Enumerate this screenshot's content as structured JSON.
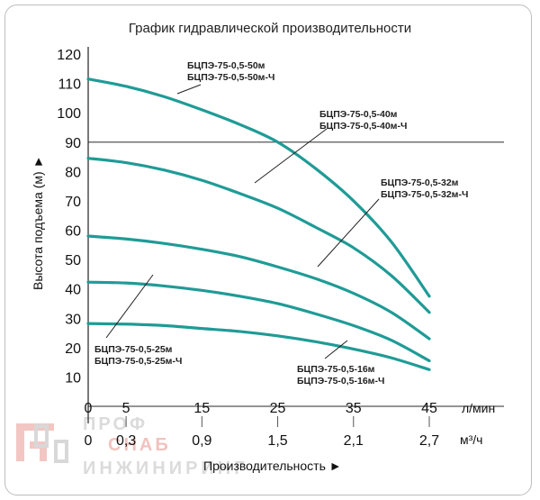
{
  "chart_data": {
    "type": "line",
    "title": "График гидравлической производительности",
    "ylabel": "Высота подъема (м) ►",
    "xlabel": "Производительность ►",
    "x_unit_lpm": "л/мин",
    "x_unit_m3h": "м³/ч",
    "ylim": [
      0,
      120
    ],
    "yticks": [
      "120",
      "110",
      "100",
      "90",
      "80",
      "70",
      "60",
      "50",
      "40",
      "30",
      "20",
      "10"
    ],
    "xlim": [
      0,
      45
    ],
    "xticks_lpm": [
      "0",
      "5",
      "15",
      "25",
      "35",
      "45"
    ],
    "xticks_m3h": [
      "0",
      "0,3",
      "0,9",
      "1,5",
      "2,1",
      "2,7"
    ],
    "grid_major_y": [
      90,
      0
    ],
    "series": [
      {
        "name": "БЦПЭ-75-0,5-50м / БЦПЭ-75-0,5-50м-Ч",
        "x": [
          0,
          5,
          10,
          15,
          20,
          25,
          30,
          35,
          40,
          45
        ],
        "y": [
          111.5,
          109,
          105.5,
          101,
          96,
          90,
          81,
          70,
          56,
          37.5
        ]
      },
      {
        "name": "БЦПЭ-75-0,5-40м / БЦПЭ-75-0,5-40м-Ч",
        "x": [
          0,
          5,
          10,
          15,
          20,
          25,
          30,
          35,
          40,
          45
        ],
        "y": [
          84.5,
          83,
          80.5,
          77,
          72.5,
          67.5,
          61,
          54,
          44.5,
          32
        ]
      },
      {
        "name": "БЦПЭ-75-0,5-32м / БЦПЭ-75-0,5-32м-Ч",
        "x": [
          0,
          5,
          10,
          15,
          20,
          25,
          30,
          35,
          40,
          45
        ],
        "y": [
          58,
          57,
          55.5,
          53.5,
          51,
          47.5,
          43.5,
          38.5,
          32,
          23
        ]
      },
      {
        "name": "БЦПЭ-75-0,5-25м / БЦПЭ-75-0,5-25м-Ч",
        "x": [
          0,
          5,
          10,
          15,
          20,
          25,
          30,
          35,
          40,
          45
        ],
        "y": [
          42.3,
          42,
          41,
          39.5,
          37.5,
          35,
          31.5,
          27.5,
          22.5,
          15.5
        ]
      },
      {
        "name": "БЦПЭ-75-0,5-16м / БЦПЭ-75-0,5-16м-Ч",
        "x": [
          0,
          5,
          10,
          15,
          20,
          25,
          30,
          35,
          40,
          45
        ],
        "y": [
          28.2,
          28,
          27.5,
          26.5,
          25.5,
          24,
          22,
          19.5,
          16.5,
          12.5
        ]
      }
    ],
    "labels": [
      {
        "line1": "БЦПЭ-75-0,5-50м",
        "line2": "БЦПЭ-75-0,5-50м-Ч"
      },
      {
        "line1": "БЦПЭ-75-0,5-40м",
        "line2": "БЦПЭ-75-0,5-40м-Ч"
      },
      {
        "line1": "БЦПЭ-75-0,5-32м",
        "line2": "БЦПЭ-75-0,5-32м-Ч"
      },
      {
        "line1": "БЦПЭ-75-0,5-25м",
        "line2": "БЦПЭ-75-0,5-25м-Ч"
      },
      {
        "line1": "БЦПЭ-75-0,5-16м",
        "line2": "БЦПЭ-75-0,5-16м-Ч"
      }
    ],
    "colors": {
      "curve": "#1f9b96",
      "grid": "#555555",
      "axis": "#222222"
    }
  },
  "watermark": {
    "line1": "ПРОФ",
    "line2": "СНАБ",
    "line3": "ИНЖИНИРИНГ"
  }
}
